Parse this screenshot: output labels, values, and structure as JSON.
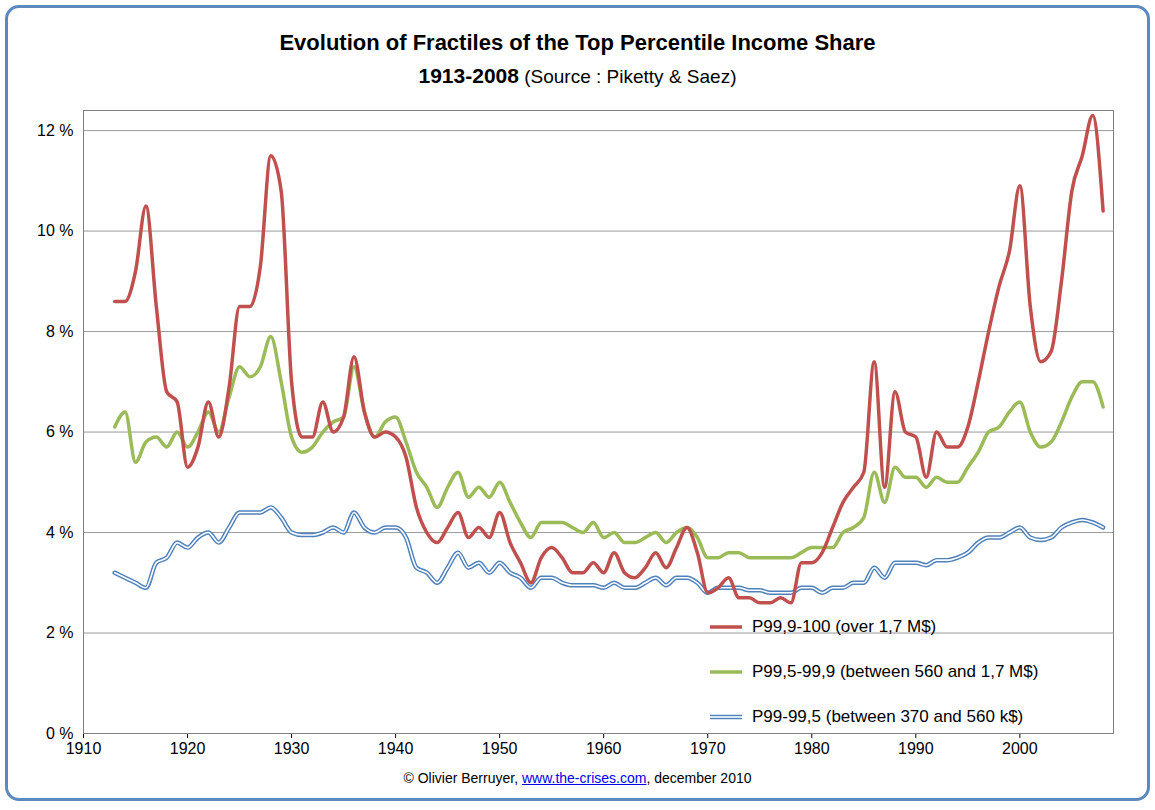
{
  "chart_data": {
    "type": "line",
    "title": "Evolution of Fractiles of the Top Percentile Income Share",
    "subtitle": "1913-2008 (Source : Piketty & Saez)",
    "caption": "© Olivier Berruyer, www.the-crises.com, december 2010",
    "x": [
      1913,
      1914,
      1915,
      1916,
      1917,
      1918,
      1919,
      1920,
      1921,
      1922,
      1923,
      1924,
      1925,
      1926,
      1927,
      1928,
      1929,
      1930,
      1931,
      1932,
      1933,
      1934,
      1935,
      1936,
      1937,
      1938,
      1939,
      1940,
      1941,
      1942,
      1943,
      1944,
      1945,
      1946,
      1947,
      1948,
      1949,
      1950,
      1951,
      1952,
      1953,
      1954,
      1955,
      1956,
      1957,
      1958,
      1959,
      1960,
      1961,
      1962,
      1963,
      1964,
      1965,
      1966,
      1967,
      1968,
      1969,
      1970,
      1971,
      1972,
      1973,
      1974,
      1975,
      1976,
      1977,
      1978,
      1979,
      1980,
      1981,
      1982,
      1983,
      1984,
      1985,
      1986,
      1987,
      1988,
      1989,
      1990,
      1991,
      1992,
      1993,
      1994,
      1995,
      1996,
      1997,
      1998,
      1999,
      2000,
      2001,
      2002,
      2003,
      2004,
      2005,
      2006,
      2007,
      2008
    ],
    "series": [
      {
        "name": "P99,9-100 (over 1,7 M$)",
        "color": "#c0504d",
        "line_style": "solid",
        "values": [
          8.6,
          8.6,
          9.2,
          10.5,
          8.5,
          6.8,
          6.6,
          5.3,
          5.7,
          6.6,
          5.9,
          6.9,
          8.5,
          8.5,
          9.3,
          11.5,
          10.8,
          7.0,
          5.9,
          5.9,
          6.6,
          6.0,
          6.3,
          7.5,
          6.4,
          5.9,
          6.0,
          5.9,
          5.5,
          4.5,
          4.0,
          3.8,
          4.1,
          4.4,
          3.9,
          4.1,
          3.9,
          4.4,
          3.8,
          3.4,
          3.0,
          3.5,
          3.7,
          3.5,
          3.2,
          3.2,
          3.4,
          3.2,
          3.6,
          3.2,
          3.1,
          3.3,
          3.6,
          3.3,
          3.7,
          4.1,
          3.6,
          2.8,
          2.9,
          3.1,
          2.7,
          2.7,
          2.6,
          2.6,
          2.7,
          2.6,
          3.4,
          3.4,
          3.6,
          4.1,
          4.6,
          4.9,
          5.2,
          7.4,
          4.9,
          6.8,
          6.0,
          5.9,
          5.1,
          6.0,
          5.7,
          5.7,
          6.1,
          7.0,
          8.0,
          8.9,
          9.6,
          10.9,
          8.5,
          7.4,
          7.6,
          9.0,
          10.8,
          11.5,
          12.3,
          10.4
        ]
      },
      {
        "name": "P99,5-99,9 (between 560 and 1,7 M$)",
        "color": "#9bbb59",
        "line_style": "solid",
        "values": [
          6.1,
          6.4,
          5.4,
          5.8,
          5.9,
          5.7,
          6.0,
          5.7,
          6.0,
          6.4,
          6.0,
          6.7,
          7.3,
          7.1,
          7.3,
          7.9,
          7.0,
          5.9,
          5.6,
          5.7,
          6.0,
          6.2,
          6.3,
          7.3,
          6.4,
          5.9,
          6.2,
          6.3,
          5.8,
          5.2,
          4.9,
          4.5,
          4.9,
          5.2,
          4.7,
          4.9,
          4.7,
          5.0,
          4.6,
          4.2,
          3.9,
          4.2,
          4.2,
          4.2,
          4.1,
          4.0,
          4.2,
          3.9,
          4.0,
          3.8,
          3.8,
          3.9,
          4.0,
          3.8,
          4.0,
          4.1,
          3.9,
          3.5,
          3.5,
          3.6,
          3.6,
          3.5,
          3.5,
          3.5,
          3.5,
          3.5,
          3.6,
          3.7,
          3.7,
          3.7,
          4.0,
          4.1,
          4.3,
          5.2,
          4.6,
          5.3,
          5.1,
          5.1,
          4.9,
          5.1,
          5.0,
          5.0,
          5.3,
          5.6,
          6.0,
          6.1,
          6.4,
          6.6,
          6.0,
          5.7,
          5.8,
          6.2,
          6.7,
          7.0,
          7.0,
          6.5
        ]
      },
      {
        "name": "P99-99,5 (between 370 and 560 k$)",
        "color": "#4f81bd",
        "line_style": "double",
        "values": [
          3.2,
          3.1,
          3.0,
          2.9,
          3.4,
          3.5,
          3.8,
          3.7,
          3.9,
          4.0,
          3.8,
          4.1,
          4.4,
          4.4,
          4.4,
          4.5,
          4.3,
          4.0,
          3.95,
          3.95,
          4.0,
          4.1,
          4.0,
          4.4,
          4.1,
          4.0,
          4.1,
          4.1,
          3.9,
          3.3,
          3.2,
          3.0,
          3.3,
          3.6,
          3.3,
          3.4,
          3.2,
          3.4,
          3.2,
          3.1,
          2.9,
          3.1,
          3.1,
          3.0,
          2.95,
          2.95,
          2.95,
          2.9,
          3.0,
          2.9,
          2.9,
          3.0,
          3.1,
          2.95,
          3.1,
          3.1,
          3.0,
          2.8,
          2.9,
          2.9,
          2.9,
          2.85,
          2.85,
          2.8,
          2.8,
          2.8,
          2.9,
          2.9,
          2.8,
          2.9,
          2.9,
          3.0,
          3.0,
          3.3,
          3.1,
          3.4,
          3.4,
          3.4,
          3.35,
          3.45,
          3.45,
          3.5,
          3.6,
          3.8,
          3.9,
          3.9,
          4.0,
          4.1,
          3.9,
          3.85,
          3.9,
          4.1,
          4.2,
          4.25,
          4.2,
          4.1
        ]
      }
    ],
    "xlim": [
      1910,
      2009
    ],
    "xticks": [
      1910,
      1920,
      1930,
      1940,
      1950,
      1960,
      1970,
      1980,
      1990,
      2000
    ],
    "ylim": [
      0,
      12.4
    ],
    "yticks": [
      {
        "value": 0,
        "label": "0 %"
      },
      {
        "value": 2,
        "label": "2 %"
      },
      {
        "value": 4,
        "label": "4 %"
      },
      {
        "value": 6,
        "label": "6 %"
      },
      {
        "value": 8,
        "label": "8 %"
      },
      {
        "value": 10,
        "label": "10 %"
      },
      {
        "value": 12,
        "label": "12 %"
      }
    ],
    "grid": true,
    "legend": "bottom-right"
  }
}
